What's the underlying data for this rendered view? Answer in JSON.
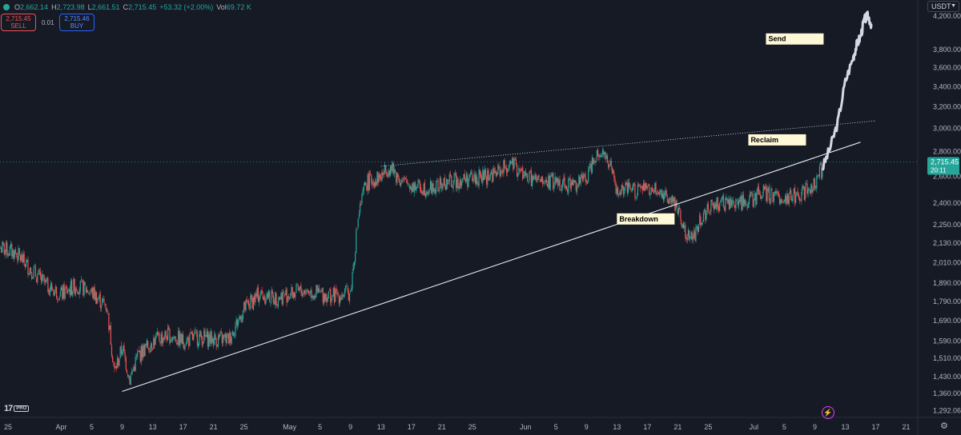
{
  "header": {
    "open_label": "O",
    "open": "2,662.14",
    "high_label": "H",
    "high": "2,723.98",
    "low_label": "L",
    "low": "2,661.51",
    "close_label": "C",
    "close": "2,715.45",
    "change": "+53.32 (+2.00%)",
    "vol_label": "Vol",
    "vol": "69.72 K"
  },
  "trade": {
    "sell_price": "2,715.45",
    "sell_label": "SELL",
    "spread": "0.01",
    "buy_price": "2,715.46",
    "buy_label": "BUY"
  },
  "currency": "USDT",
  "current_price": {
    "price": "2,715.45",
    "countdown": "20:11",
    "value": 2715.45
  },
  "colors": {
    "up": "#26a69a",
    "down": "#ef5350",
    "background": "#161a25",
    "projection": "#d4d8e6",
    "label_bg": "#fff8d6",
    "price_tag": "#26a69a"
  },
  "chart_data": {
    "type": "candlestick",
    "y_scale": "log",
    "ylim": [
      1275,
      4300
    ],
    "y_ticks": [
      4200,
      3800,
      3600,
      3400,
      3200,
      3000,
      2800,
      2600,
      2400,
      2250,
      2130,
      2010,
      1890,
      1790,
      1690,
      1590,
      1510,
      1430,
      1360,
      1292.06
    ],
    "y_tick_labels": [
      "4,200.00",
      "3,800.00",
      "3,600.00",
      "3,400.00",
      "3,200.00",
      "3,000.00",
      "2,800.00",
      "2,600.00",
      "2,400.00",
      "2,250.00",
      "2,130.00",
      "2,010.00",
      "1,890.00",
      "1,790.00",
      "1,690.00",
      "1,590.00",
      "1,510.00",
      "1,430.00",
      "1,360.00",
      "1,292.06"
    ],
    "x_axis": {
      "start": "2024-03-25",
      "end": "2024-07-22"
    },
    "x_ticks": [
      {
        "date": "2024-03-25",
        "label": "25"
      },
      {
        "date": "2024-04-01",
        "label": "Apr"
      },
      {
        "date": "2024-04-05",
        "label": "5"
      },
      {
        "date": "2024-04-09",
        "label": "9"
      },
      {
        "date": "2024-04-13",
        "label": "13"
      },
      {
        "date": "2024-04-17",
        "label": "17"
      },
      {
        "date": "2024-04-21",
        "label": "21"
      },
      {
        "date": "2024-04-25",
        "label": "25"
      },
      {
        "date": "2024-05-01",
        "label": "May"
      },
      {
        "date": "2024-05-05",
        "label": "5"
      },
      {
        "date": "2024-05-09",
        "label": "9"
      },
      {
        "date": "2024-05-13",
        "label": "13"
      },
      {
        "date": "2024-05-17",
        "label": "17"
      },
      {
        "date": "2024-05-21",
        "label": "21"
      },
      {
        "date": "2024-05-25",
        "label": "25"
      },
      {
        "date": "2024-06-01",
        "label": "Jun"
      },
      {
        "date": "2024-06-05",
        "label": "5"
      },
      {
        "date": "2024-06-09",
        "label": "9"
      },
      {
        "date": "2024-06-13",
        "label": "13"
      },
      {
        "date": "2024-06-17",
        "label": "17"
      },
      {
        "date": "2024-06-21",
        "label": "21"
      },
      {
        "date": "2024-06-25",
        "label": "25"
      },
      {
        "date": "2024-07-01",
        "label": "Jul"
      },
      {
        "date": "2024-07-05",
        "label": "5"
      },
      {
        "date": "2024-07-09",
        "label": "9"
      },
      {
        "date": "2024-07-13",
        "label": "13"
      },
      {
        "date": "2024-07-17",
        "label": "17"
      },
      {
        "date": "2024-07-21",
        "label": "21"
      }
    ],
    "price_path": [
      [
        "2024-03-24",
        2100
      ],
      [
        "2024-03-26",
        2070
      ],
      [
        "2024-03-28",
        1970
      ],
      [
        "2024-03-30",
        1880
      ],
      [
        "2024-04-01",
        1830
      ],
      [
        "2024-04-03",
        1880
      ],
      [
        "2024-04-05",
        1840
      ],
      [
        "2024-04-07",
        1760
      ],
      [
        "2024-04-08",
        1450
      ],
      [
        "2024-04-09",
        1560
      ],
      [
        "2024-04-10",
        1420
      ],
      [
        "2024-04-11",
        1520
      ],
      [
        "2024-04-13",
        1590
      ],
      [
        "2024-04-15",
        1620
      ],
      [
        "2024-04-17",
        1590
      ],
      [
        "2024-04-19",
        1610
      ],
      [
        "2024-04-21",
        1600
      ],
      [
        "2024-04-23",
        1600
      ],
      [
        "2024-04-25",
        1750
      ],
      [
        "2024-04-27",
        1830
      ],
      [
        "2024-04-29",
        1810
      ],
      [
        "2024-05-01",
        1830
      ],
      [
        "2024-05-03",
        1850
      ],
      [
        "2024-05-05",
        1830
      ],
      [
        "2024-05-07",
        1820
      ],
      [
        "2024-05-09",
        1840
      ],
      [
        "2024-05-10",
        2300
      ],
      [
        "2024-05-11",
        2550
      ],
      [
        "2024-05-13",
        2600
      ],
      [
        "2024-05-14",
        2680
      ],
      [
        "2024-05-16",
        2550
      ],
      [
        "2024-05-18",
        2520
      ],
      [
        "2024-05-20",
        2510
      ],
      [
        "2024-05-22",
        2560
      ],
      [
        "2024-05-24",
        2580
      ],
      [
        "2024-05-26",
        2590
      ],
      [
        "2024-05-28",
        2620
      ],
      [
        "2024-05-30",
        2700
      ],
      [
        "2024-06-01",
        2600
      ],
      [
        "2024-06-03",
        2550
      ],
      [
        "2024-06-05",
        2560
      ],
      [
        "2024-06-07",
        2540
      ],
      [
        "2024-06-09",
        2580
      ],
      [
        "2024-06-10",
        2770
      ],
      [
        "2024-06-11",
        2810
      ],
      [
        "2024-06-12",
        2700
      ],
      [
        "2024-06-13",
        2480
      ],
      [
        "2024-06-15",
        2500
      ],
      [
        "2024-06-17",
        2500
      ],
      [
        "2024-06-19",
        2480
      ],
      [
        "2024-06-21",
        2380
      ],
      [
        "2024-06-22",
        2190
      ],
      [
        "2024-06-23",
        2160
      ],
      [
        "2024-06-24",
        2300
      ],
      [
        "2024-06-26",
        2400
      ],
      [
        "2024-06-28",
        2390
      ],
      [
        "2024-06-30",
        2420
      ],
      [
        "2024-07-01",
        2430
      ],
      [
        "2024-07-02",
        2480
      ],
      [
        "2024-07-04",
        2440
      ],
      [
        "2024-07-06",
        2450
      ],
      [
        "2024-07-08",
        2490
      ],
      [
        "2024-07-09",
        2560
      ],
      [
        "2024-07-10",
        2662
      ]
    ],
    "projection": [
      [
        "2024-07-10",
        2662
      ],
      [
        "2024-07-11",
        2830
      ],
      [
        "2024-07-12",
        3050
      ],
      [
        "2024-07-13",
        3450
      ],
      [
        "2024-07-14",
        3700
      ],
      [
        "2024-07-14T12:00",
        3850
      ],
      [
        "2024-07-15",
        3950
      ],
      [
        "2024-07-15T12:00",
        4150
      ],
      [
        "2024-07-16",
        4200
      ],
      [
        "2024-07-16T12:00",
        4080
      ]
    ],
    "lines": [
      {
        "name": "rising-support",
        "style": "solid",
        "from": [
          "2024-04-09",
          1368
        ],
        "to": [
          "2024-07-15",
          2880
        ]
      },
      {
        "name": "resistance",
        "style": "dotted",
        "from": [
          "2024-05-13",
          2680
        ],
        "to": [
          "2024-07-17",
          3070
        ]
      }
    ],
    "annotations": [
      {
        "text": "Send",
        "date": "2024-07-11",
        "price": 3920
      },
      {
        "text": "Reclaim",
        "date": "2024-07-09",
        "price": 2900
      },
      {
        "text": "Breakdown",
        "date": "2024-06-13",
        "price": 2290
      }
    ]
  }
}
